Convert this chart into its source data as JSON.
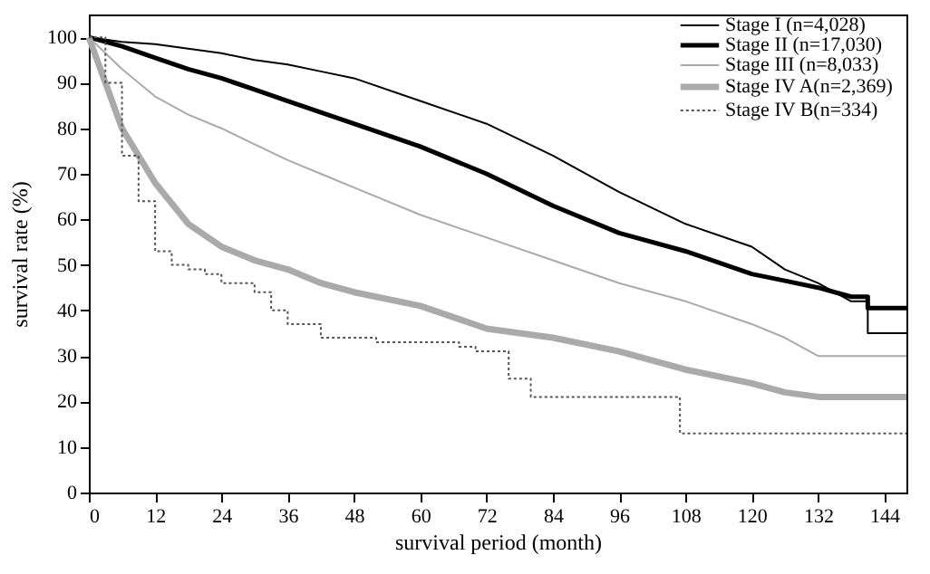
{
  "chart_data": {
    "type": "line",
    "xlabel": "survival period (month)",
    "ylabel": "survival rate (%)",
    "xlim": [
      0,
      148
    ],
    "xticks": [
      0,
      12,
      24,
      36,
      48,
      60,
      72,
      84,
      96,
      108,
      120,
      132,
      144
    ],
    "ylim": [
      0,
      105
    ],
    "yticks": [
      0,
      10,
      20,
      30,
      40,
      50,
      60,
      70,
      80,
      90,
      100
    ],
    "grid": false,
    "legend": "top right",
    "marker": "none",
    "x": [
      0,
      6,
      12,
      18,
      24,
      30,
      36,
      42,
      48,
      60,
      72,
      84,
      96,
      108,
      120,
      126,
      132,
      138,
      141,
      148
    ],
    "series": [
      {
        "name": "Stage I (n=4,028)",
        "x": [
          0,
          6,
          12,
          18,
          24,
          30,
          36,
          42,
          48,
          60,
          72,
          84,
          96,
          108,
          120,
          126,
          132,
          138,
          141,
          141,
          148
        ],
        "color": "#000000",
        "line_style": "solid",
        "values": [
          100,
          99,
          98.5,
          97.5,
          96.5,
          95,
          94,
          92.5,
          91,
          86,
          81,
          74,
          66,
          59,
          54,
          49,
          46,
          42,
          42,
          35,
          35
        ]
      },
      {
        "name": "Stage II (n=17,030)",
        "x": [
          0,
          6,
          12,
          18,
          24,
          30,
          36,
          42,
          48,
          60,
          72,
          84,
          96,
          108,
          120,
          126,
          132,
          138,
          141,
          141,
          148
        ],
        "color": "#000000",
        "line_style": "solid",
        "values": [
          100,
          98,
          95.5,
          93,
          91,
          88.5,
          86,
          83.5,
          81,
          76,
          70,
          63,
          57,
          53,
          48,
          46.5,
          45,
          43,
          43,
          40.5,
          40.5
        ]
      },
      {
        "name": "Stage III (n=8,033)",
        "color": "#aaaaaa",
        "line_style": "solid",
        "values": [
          100,
          93,
          87,
          83,
          80,
          76.5,
          73,
          70,
          67,
          61,
          56,
          51,
          46,
          42,
          37,
          34,
          30,
          30,
          30,
          30
        ]
      },
      {
        "name": "Stage IV A(n=2,369)",
        "color": "#aaaaaa",
        "line_style": "solid",
        "values": [
          100,
          80,
          68,
          59,
          54,
          51,
          49,
          46,
          44,
          41,
          36,
          34,
          31,
          27,
          24,
          22,
          21,
          21,
          21,
          21
        ]
      },
      {
        "name": "Stage IV B(n=334)",
        "type": "step",
        "x": [
          0,
          3,
          6,
          9,
          12,
          15,
          18,
          21,
          24,
          30,
          33,
          36,
          42,
          52,
          67,
          70,
          76,
          80,
          107,
          148
        ],
        "color": "#555555",
        "line_style": "dotted",
        "values": [
          100,
          90,
          74,
          64,
          53,
          50,
          49,
          48,
          46,
          44,
          40,
          37,
          34,
          33,
          32,
          31,
          25,
          21,
          13,
          13
        ]
      }
    ]
  }
}
